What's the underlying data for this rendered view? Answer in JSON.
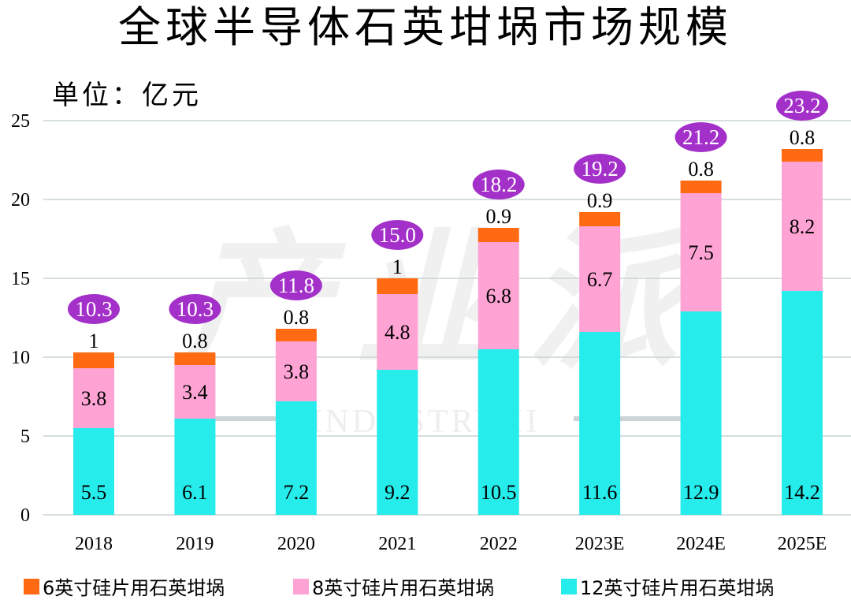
{
  "title": "全球半导体石英坩埚市场规模",
  "unit_label": "单位：亿元",
  "colors": {
    "six_inch": "#FF6A13",
    "eight_inch": "#FFA3D4",
    "twelve_inch": "#27ECEC",
    "total_bubble": "#A330C9",
    "grid": "#C9D4D4"
  },
  "chart_data": {
    "type": "bar",
    "stacked": true,
    "categories": [
      "2018",
      "2019",
      "2020",
      "2021",
      "2022",
      "2023E",
      "2024E",
      "2025E"
    ],
    "series": [
      {
        "name": "12英寸硅片用石英坩埚",
        "values": [
          5.5,
          6.1,
          7.2,
          9.2,
          10.5,
          11.6,
          12.9,
          14.2
        ],
        "labels": [
          "5.5",
          "6.1",
          "7.2",
          "9.2",
          "10.5",
          "11.6",
          "12.9",
          "14.2"
        ]
      },
      {
        "name": "8英寸硅片用石英坩埚",
        "values": [
          3.8,
          3.4,
          3.8,
          4.8,
          6.8,
          6.7,
          7.5,
          8.2
        ],
        "labels": [
          "3.8",
          "3.4",
          "3.8",
          "4.8",
          "6.8",
          "6.7",
          "7.5",
          "8.2"
        ]
      },
      {
        "name": "6英寸硅片用石英坩埚",
        "values": [
          1,
          0.8,
          0.8,
          1,
          0.9,
          0.9,
          0.8,
          0.8
        ],
        "labels": [
          "1",
          "0.8",
          "0.8",
          "1",
          "0.9",
          "0.9",
          "0.8",
          "0.8"
        ]
      }
    ],
    "totals": [
      "10.3",
      "10.3",
      "11.8",
      "15.0",
      "18.2",
      "19.2",
      "21.2",
      "23.2"
    ],
    "ylim": [
      0,
      25
    ],
    "yticks": [
      "0",
      "5",
      "10",
      "15",
      "20",
      "25"
    ],
    "grid": true,
    "legend_position": "bottom"
  },
  "legend": {
    "items": [
      {
        "label": "6英寸硅片用石英坩埚",
        "color": "#FF6A13"
      },
      {
        "label": "8英寸硅片用石英坩埚",
        "color": "#FFA3D4"
      },
      {
        "label": "12英寸硅片用石英坩埚",
        "color": "#27ECEC"
      }
    ]
  },
  "watermark": {
    "text": "产业派",
    "subtext": "INDUSTRY II"
  }
}
